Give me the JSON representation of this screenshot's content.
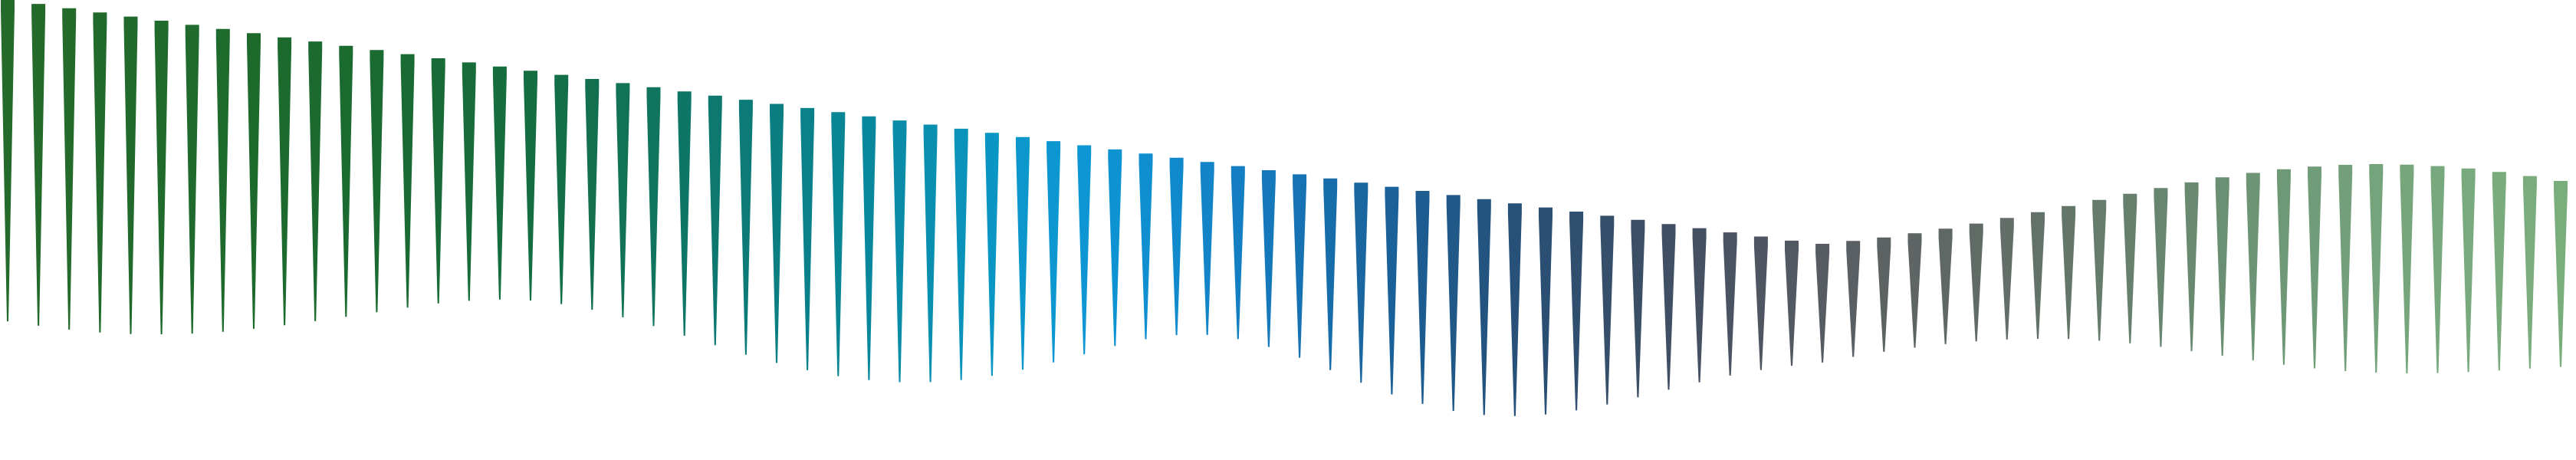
{
  "background": "#ffffff",
  "spike_count": 84,
  "colors": {
    "start": "#1f6b2a",
    "teal": "#0b7f86",
    "sky": "#0c8fcf",
    "slate": "#3a4f73",
    "grey": "#5f6a66",
    "sage": "#7aad7c"
  },
  "spikes": [
    {
      "drop": 0.0,
      "length": 0.83,
      "color": "#246a2b"
    },
    {
      "drop": 0.016,
      "length": 0.837,
      "color": "#246a2b"
    },
    {
      "drop": 0.034,
      "length": 0.842,
      "color": "#236a2b"
    },
    {
      "drop": 0.051,
      "length": 0.845,
      "color": "#226a2b"
    },
    {
      "drop": 0.068,
      "length": 0.844,
      "color": "#216a2c"
    },
    {
      "drop": 0.085,
      "length": 0.84,
      "color": "#206a2c"
    },
    {
      "drop": 0.102,
      "length": 0.833,
      "color": "#1f6a2c"
    },
    {
      "drop": 0.119,
      "length": 0.823,
      "color": "#1f6a2d"
    },
    {
      "drop": 0.136,
      "length": 0.81,
      "color": "#1e6a2d"
    },
    {
      "drop": 0.153,
      "length": 0.795,
      "color": "#1d6a2e"
    },
    {
      "drop": 0.17,
      "length": 0.778,
      "color": "#1c6a2f"
    },
    {
      "drop": 0.188,
      "length": 0.76,
      "color": "#1b6a30"
    },
    {
      "drop": 0.205,
      "length": 0.741,
      "color": "#1a6a31"
    },
    {
      "drop": 0.222,
      "length": 0.722,
      "color": "#196b33"
    },
    {
      "drop": 0.239,
      "length": 0.704,
      "color": "#186b36"
    },
    {
      "drop": 0.256,
      "length": 0.69,
      "color": "#176c39"
    },
    {
      "drop": 0.273,
      "length": 0.68,
      "color": "#166d3d"
    },
    {
      "drop": 0.29,
      "length": 0.676,
      "color": "#146e42"
    },
    {
      "drop": 0.307,
      "length": 0.68,
      "color": "#136f48"
    },
    {
      "drop": 0.324,
      "length": 0.69,
      "color": "#12704f"
    },
    {
      "drop": 0.341,
      "length": 0.706,
      "color": "#117256"
    },
    {
      "drop": 0.358,
      "length": 0.726,
      "color": "#10745e"
    },
    {
      "drop": 0.375,
      "length": 0.749,
      "color": "#0e7667"
    },
    {
      "drop": 0.392,
      "length": 0.772,
      "color": "#0d786f"
    },
    {
      "drop": 0.409,
      "length": 0.795,
      "color": "#0c7b78"
    },
    {
      "drop": 0.426,
      "length": 0.815,
      "color": "#0b7e81"
    },
    {
      "drop": 0.443,
      "length": 0.832,
      "color": "#0a818a"
    },
    {
      "drop": 0.46,
      "length": 0.845,
      "color": "#0a8593"
    },
    {
      "drop": 0.477,
      "length": 0.852,
      "color": "#09889d"
    },
    {
      "drop": 0.494,
      "length": 0.853,
      "color": "#098ca7"
    },
    {
      "drop": 0.511,
      "length": 0.847,
      "color": "#0990b1"
    },
    {
      "drop": 0.528,
      "length": 0.834,
      "color": "#0993bb"
    },
    {
      "drop": 0.545,
      "length": 0.814,
      "color": "#0a96c4"
    },
    {
      "drop": 0.562,
      "length": 0.787,
      "color": "#0b97cc"
    },
    {
      "drop": 0.579,
      "length": 0.755,
      "color": "#0c97d1"
    },
    {
      "drop": 0.596,
      "length": 0.72,
      "color": "#0d96d3"
    },
    {
      "drop": 0.613,
      "length": 0.684,
      "color": "#0e93d2"
    },
    {
      "drop": 0.63,
      "length": 0.652,
      "color": "#0f8fd0"
    },
    {
      "drop": 0.647,
      "length": 0.629,
      "color": "#108acc"
    },
    {
      "drop": 0.664,
      "length": 0.62,
      "color": "#1284c7"
    },
    {
      "drop": 0.681,
      "length": 0.626,
      "color": "#137ec1"
    },
    {
      "drop": 0.698,
      "length": 0.646,
      "color": "#1478ba"
    },
    {
      "drop": 0.715,
      "length": 0.677,
      "color": "#1672b2"
    },
    {
      "drop": 0.732,
      "length": 0.715,
      "color": "#176caa"
    },
    {
      "drop": 0.749,
      "length": 0.754,
      "color": "#1966a1"
    },
    {
      "drop": 0.766,
      "length": 0.791,
      "color": "#1b6199"
    },
    {
      "drop": 0.783,
      "length": 0.82,
      "color": "#1d5c90"
    },
    {
      "drop": 0.8,
      "length": 0.84,
      "color": "#205887"
    },
    {
      "drop": 0.817,
      "length": 0.849,
      "color": "#23547f"
    },
    {
      "drop": 0.834,
      "length": 0.846,
      "color": "#275178"
    },
    {
      "drop": 0.851,
      "length": 0.832,
      "color": "#2b4f72"
    },
    {
      "drop": 0.868,
      "length": 0.808,
      "color": "#304e6d"
    },
    {
      "drop": 0.885,
      "length": 0.776,
      "color": "#354e69"
    },
    {
      "drop": 0.902,
      "length": 0.738,
      "color": "#3a4e66"
    },
    {
      "drop": 0.919,
      "length": 0.697,
      "color": "#404f64"
    },
    {
      "drop": 0.936,
      "length": 0.656,
      "color": "#455163"
    },
    {
      "drop": 0.953,
      "length": 0.617,
      "color": "#4a5362"
    },
    {
      "drop": 0.97,
      "length": 0.582,
      "color": "#4f5662"
    },
    {
      "drop": 0.987,
      "length": 0.552,
      "color": "#535962"
    },
    {
      "drop": 1.0,
      "length": 0.529,
      "color": "#575c62"
    },
    {
      "drop": 0.988,
      "length": 0.512,
      "color": "#5a5f63"
    },
    {
      "drop": 0.974,
      "length": 0.5,
      "color": "#5d6263"
    },
    {
      "drop": 0.957,
      "length": 0.494,
      "color": "#5f6564"
    },
    {
      "drop": 0.938,
      "length": 0.492,
      "color": "#606865"
    },
    {
      "drop": 0.917,
      "length": 0.495,
      "color": "#616b66"
    },
    {
      "drop": 0.894,
      "length": 0.503,
      "color": "#626e67"
    },
    {
      "drop": 0.87,
      "length": 0.516,
      "color": "#637268"
    },
    {
      "drop": 0.845,
      "length": 0.533,
      "color": "#647669"
    },
    {
      "drop": 0.82,
      "length": 0.555,
      "color": "#657b6b"
    },
    {
      "drop": 0.795,
      "length": 0.58,
      "color": "#66806d"
    },
    {
      "drop": 0.771,
      "length": 0.607,
      "color": "#68856f"
    },
    {
      "drop": 0.748,
      "length": 0.636,
      "color": "#698a71"
    },
    {
      "drop": 0.727,
      "length": 0.664,
      "color": "#6b8f73"
    },
    {
      "drop": 0.709,
      "length": 0.69,
      "color": "#6d9475"
    },
    {
      "drop": 0.694,
      "length": 0.713,
      "color": "#6f9877"
    },
    {
      "drop": 0.683,
      "length": 0.731,
      "color": "#719c79"
    },
    {
      "drop": 0.676,
      "length": 0.744,
      "color": "#73a07a"
    },
    {
      "drop": 0.673,
      "length": 0.751,
      "color": "#75a37b"
    },
    {
      "drop": 0.675,
      "length": 0.753,
      "color": "#77a67c"
    },
    {
      "drop": 0.681,
      "length": 0.749,
      "color": "#78a87d"
    },
    {
      "drop": 0.691,
      "length": 0.741,
      "color": "#79aa7d"
    },
    {
      "drop": 0.705,
      "length": 0.729,
      "color": "#7aab7d"
    },
    {
      "drop": 0.722,
      "length": 0.714,
      "color": "#7aac7d"
    },
    {
      "drop": 0.742,
      "length": 0.698,
      "color": "#7aad7c"
    }
  ]
}
